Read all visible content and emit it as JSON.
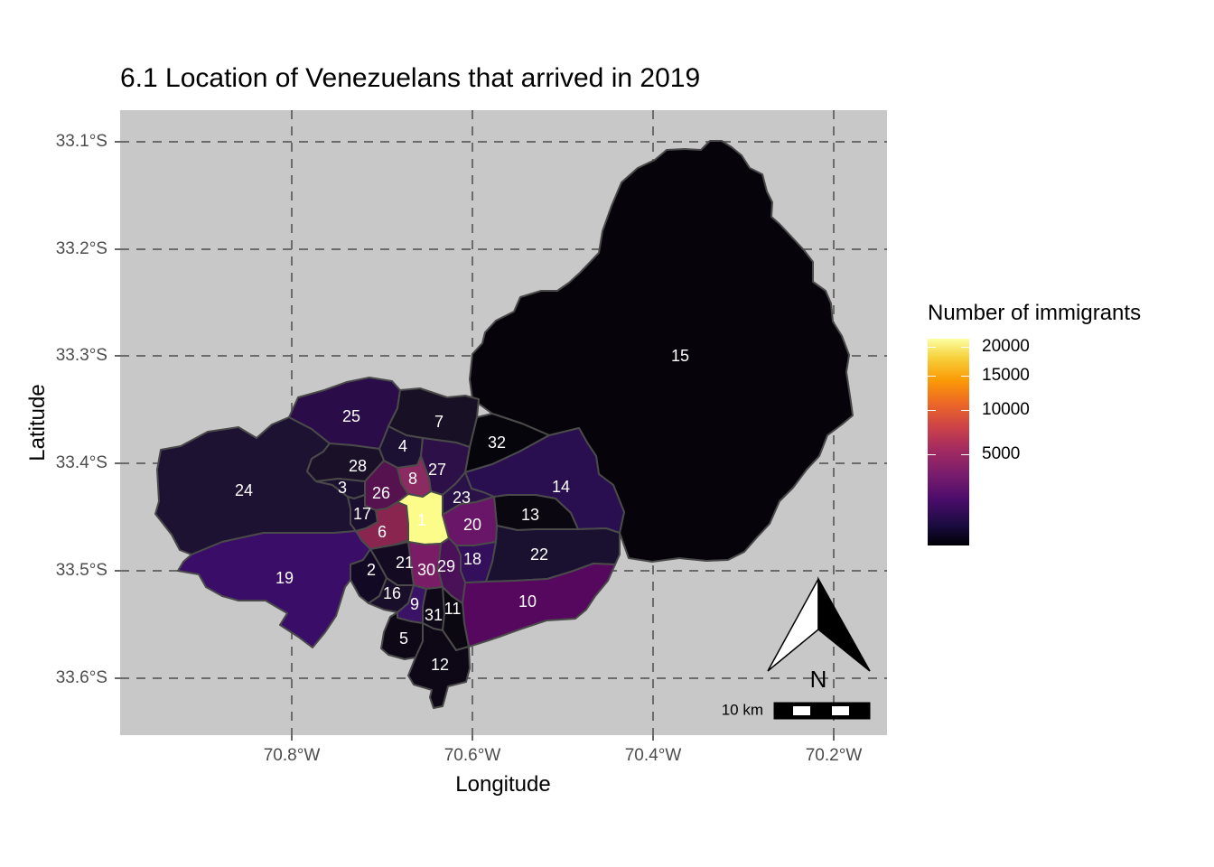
{
  "title": "6.1 Location of Venezuelans that arrived in 2019",
  "x_axis_title": "Longitude",
  "y_axis_title": "Latitude",
  "x_ticks": [
    "70.8°W",
    "70.6°W",
    "70.4°W",
    "70.2°W"
  ],
  "y_ticks": [
    "33.1°S",
    "33.2°S",
    "33.3°S",
    "33.4°S",
    "33.5°S",
    "33.6°S"
  ],
  "legend": {
    "title": "Number of immigrants",
    "labels": [
      "20000",
      "15000",
      "10000",
      "5000"
    ],
    "colormap": "inferno"
  },
  "north_arrow_label": "N",
  "scale_bar_label": "10 km",
  "colors": {
    "panel_background": "#c8c8c8",
    "grid_line": "#6b6b6b",
    "region_border": "#4a4a4a",
    "region_label": "#ffffff"
  },
  "chart_data": {
    "type": "choropleth",
    "title": "6.1 Location of Venezuelans that arrived in 2019",
    "xlabel": "Longitude",
    "ylabel": "Latitude",
    "xlim": [
      -70.99,
      -70.13
    ],
    "ylim": [
      -33.65,
      -33.07
    ],
    "grid": true,
    "legend_position": "right",
    "region_labels": [
      "1",
      "2",
      "3",
      "4",
      "5",
      "6",
      "7",
      "8",
      "9",
      "10",
      "11",
      "12",
      "13",
      "14",
      "15",
      "16",
      "17",
      "18",
      "19",
      "20",
      "21",
      "22",
      "23",
      "24",
      "25",
      "26",
      "27",
      "28",
      "29",
      "30",
      "31",
      "32"
    ],
    "fill_colors": {
      "1": "#fcfc8a",
      "2": "#120a24",
      "3": "#1c1030",
      "4": "#1d1133",
      "5": "#0e0816",
      "6": "#8a2550",
      "7": "#181024",
      "8": "#8c2a62",
      "9": "#3a1266",
      "10": "#56085e",
      "11": "#0c0812",
      "12": "#0e0816",
      "13": "#0a0710",
      "14": "#2a0f50",
      "15": "#06040a",
      "16": "#1a0f2a",
      "17": "#1a0f2e",
      "18": "#330f5c",
      "19": "#3a0d68",
      "20": "#6a1668",
      "21": "#140b22",
      "22": "#1a1030",
      "23": "#2a1148",
      "24": "#1d1232",
      "25": "#2a0d48",
      "26": "#56124e",
      "27": "#2e1048",
      "28": "#1a1028",
      "29": "#4a1058",
      "30": "#7a1c66",
      "31": "#0e0818",
      "32": "#07050c"
    }
  }
}
